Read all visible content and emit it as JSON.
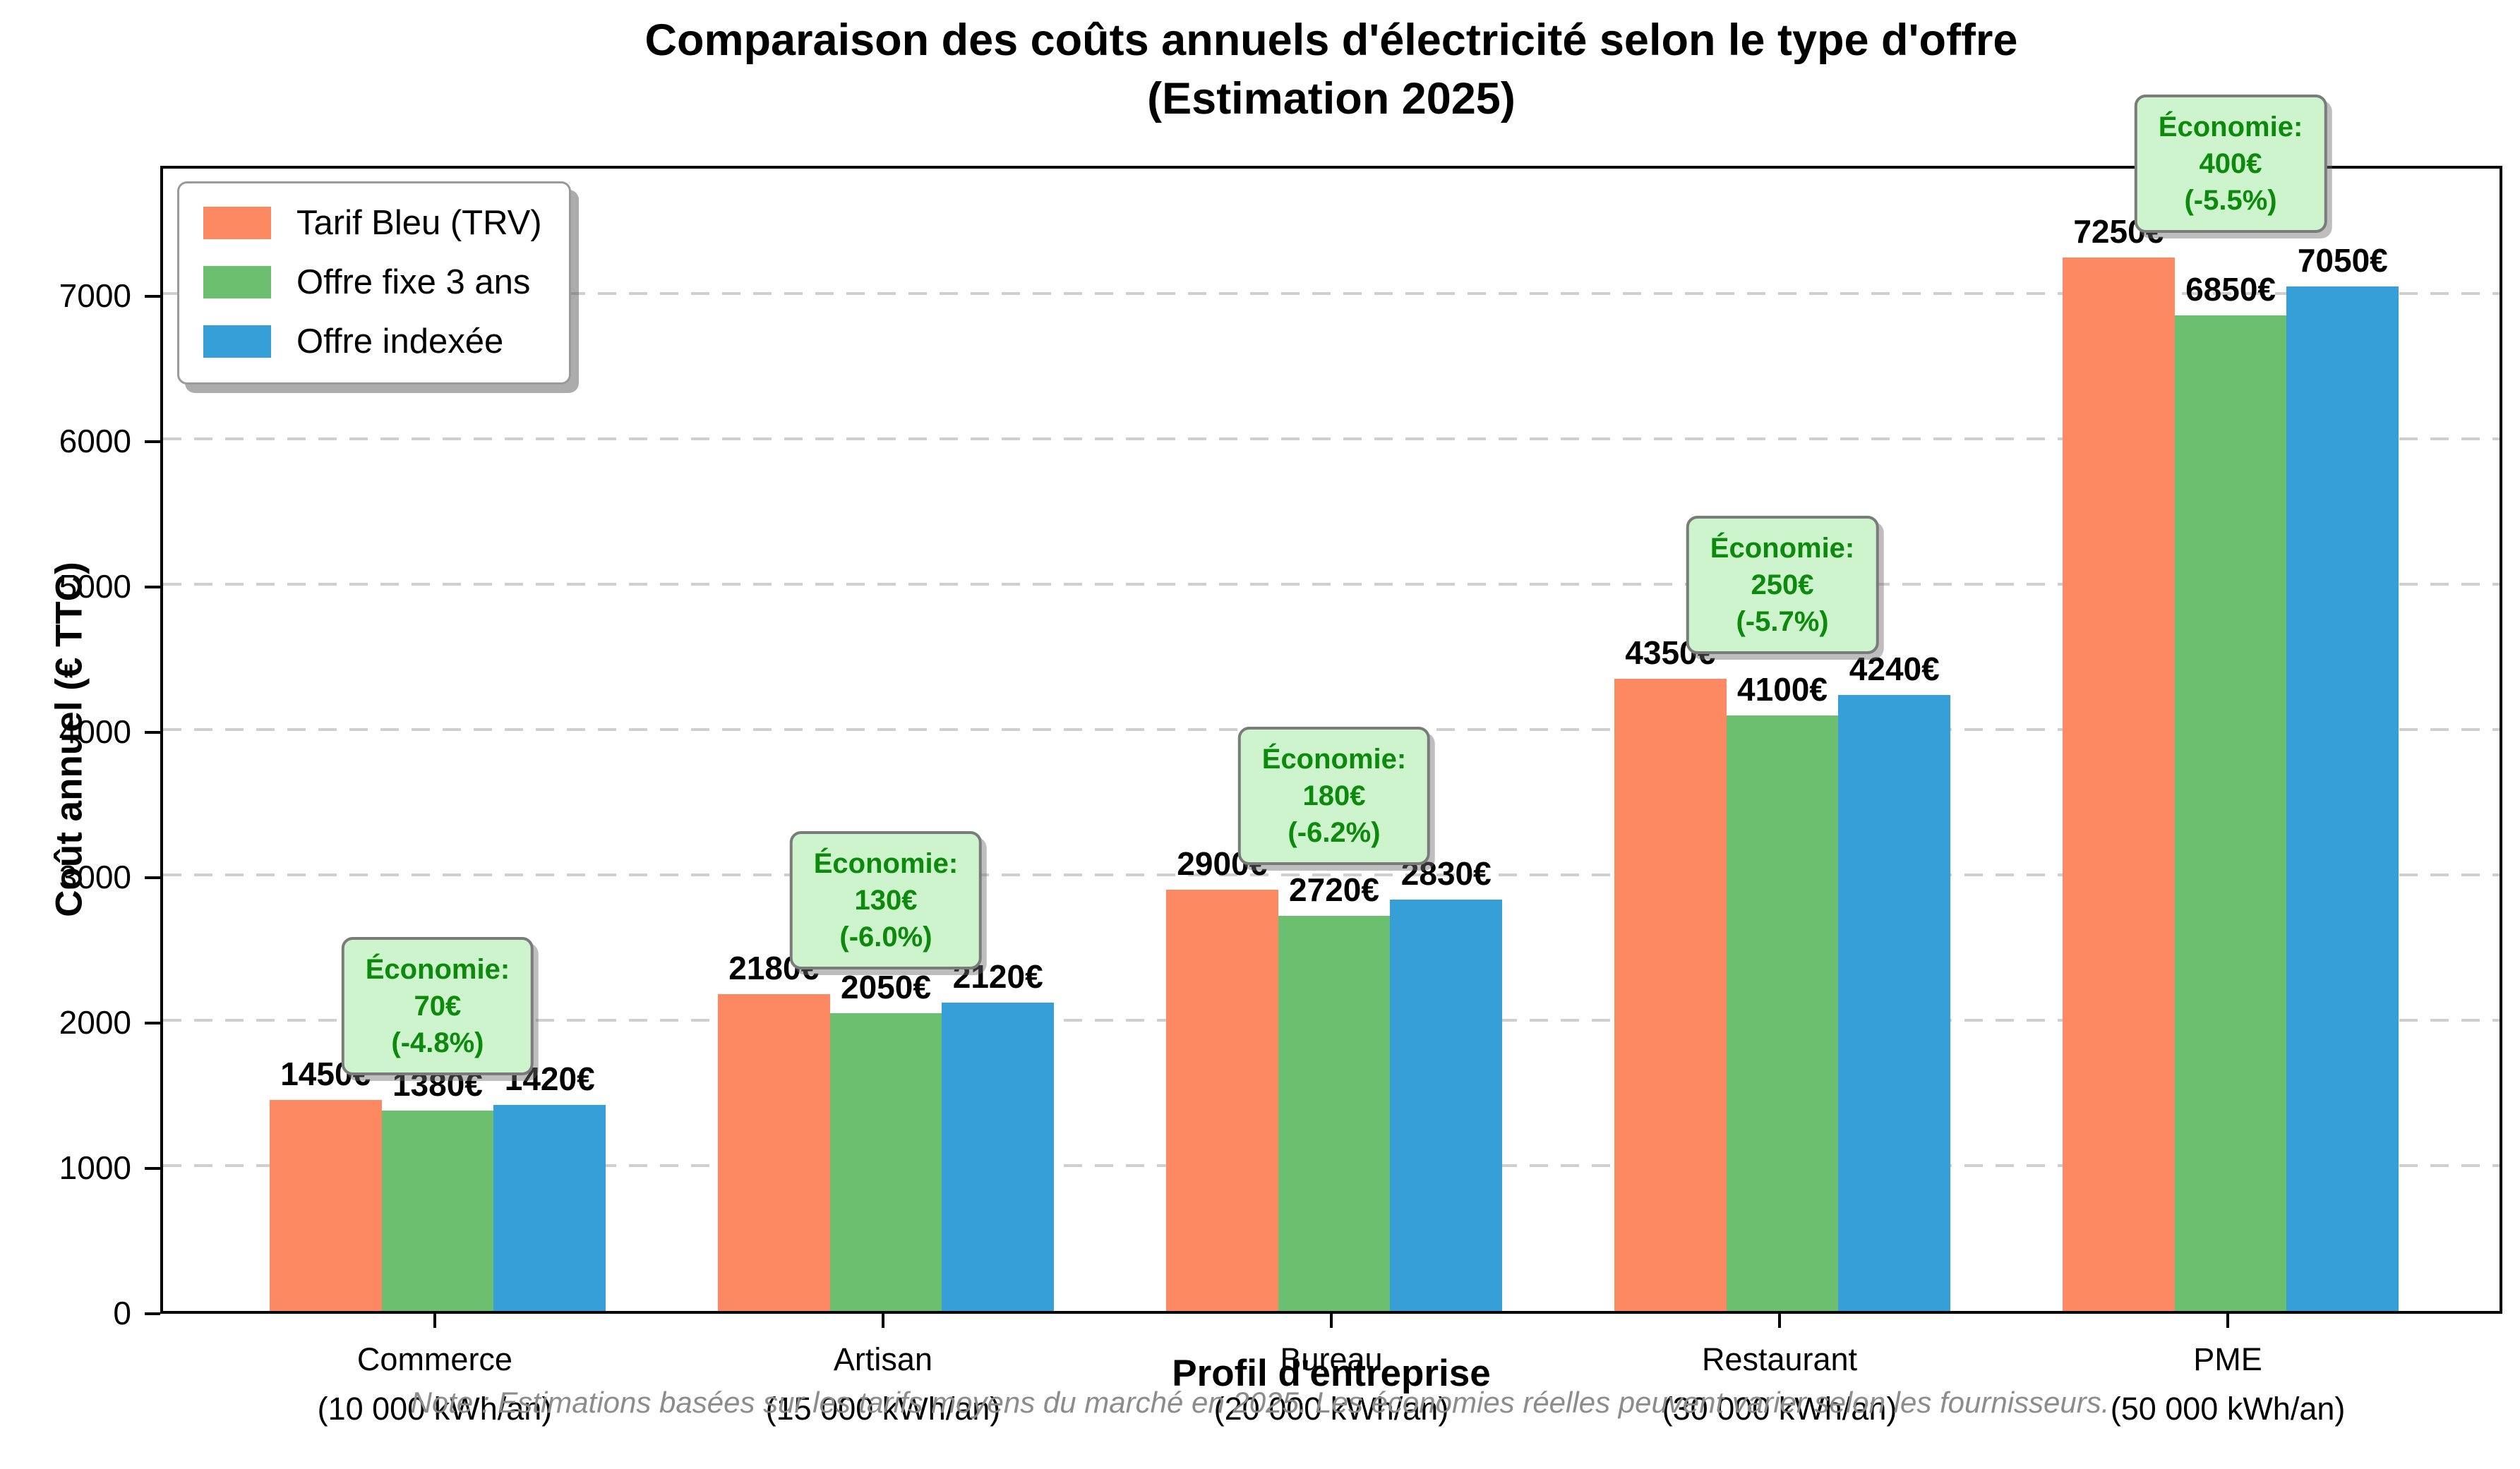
{
  "title": {
    "line1": "Comparaison des coûts annuels d'électricité selon le type d'offre",
    "line2": "(Estimation 2025)"
  },
  "note": "Note : Estimations basées sur les tarifs moyens du marché en 2025. Les économies réelles peuvent varier selon les fournisseurs.",
  "chart_data": {
    "type": "bar",
    "title": "Comparaison des coûts annuels d'électricité selon le type d'offre (Estimation 2025)",
    "xlabel": "Profil d'entreprise",
    "ylabel": "Coût annuel (€ TTC)",
    "ylim": [
      0,
      7900
    ],
    "yticks": [
      0,
      1000,
      2000,
      3000,
      4000,
      5000,
      6000,
      7000
    ],
    "grid": "horizontal-dashed",
    "legend_position": "upper-left",
    "value_suffix": "€",
    "categories": [
      "Commerce",
      "Artisan",
      "Bureau",
      "Restaurant",
      "PME"
    ],
    "category_subtitles": [
      "(10 000 kWh/an)",
      "(15 000 kWh/an)",
      "(20 000 kWh/an)",
      "(30 000 kWh/an)",
      "(50 000 kWh/an)"
    ],
    "series": [
      {
        "name": "Tarif Bleu (TRV)",
        "color": "#FC8961",
        "values": [
          1450,
          2180,
          2900,
          4350,
          7250
        ]
      },
      {
        "name": "Offre fixe 3 ans",
        "color": "#6DBF70",
        "values": [
          1380,
          2050,
          2720,
          4100,
          6850
        ]
      },
      {
        "name": "Offre indexée",
        "color": "#369FD8",
        "values": [
          1420,
          2120,
          2830,
          4240,
          7050
        ]
      }
    ],
    "annotations": [
      {
        "title": "Économie:",
        "amount": "70€",
        "percent": "(-4.8%)"
      },
      {
        "title": "Économie:",
        "amount": "130€",
        "percent": "(-6.0%)"
      },
      {
        "title": "Économie:",
        "amount": "180€",
        "percent": "(-6.2%)"
      },
      {
        "title": "Économie:",
        "amount": "250€",
        "percent": "(-5.7%)"
      },
      {
        "title": "Économie:",
        "amount": "400€",
        "percent": "(-5.5%)"
      }
    ],
    "annotation_style": {
      "bg": "#CDF4CD",
      "border": "#7B7B7B",
      "text": "#0B8A0B"
    }
  },
  "colors": {
    "grid": "#CFCFCF",
    "axis": "#000000",
    "note_text": "#8C8C8C"
  }
}
